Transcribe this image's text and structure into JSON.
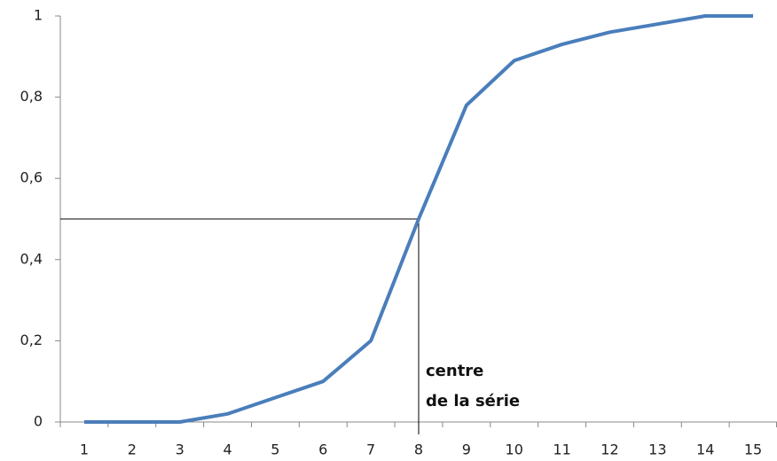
{
  "chart_data": {
    "type": "line",
    "categories": [
      "1",
      "2",
      "3",
      "4",
      "5",
      "6",
      "7",
      "8",
      "9",
      "10",
      "11",
      "12",
      "13",
      "14",
      "15"
    ],
    "series": [
      {
        "color": "#4a7ebb",
        "values": [
          0,
          0,
          0,
          0.02,
          0.06,
          0.1,
          0.2,
          0.5,
          0.78,
          0.89,
          0.93,
          0.96,
          0.98,
          1,
          1
        ]
      }
    ],
    "ylim": [
      0,
      1
    ],
    "yticks": [
      0,
      {
        "value": 0.2,
        "label": "0,2"
      },
      {
        "value": 0.4,
        "label": "0,4"
      },
      {
        "value": 0.6,
        "label": "0,6"
      },
      {
        "value": 0.8,
        "label": "0,8"
      },
      1
    ],
    "annotation": {
      "lines": [
        "centre",
        "de la série"
      ],
      "category": "8",
      "value": 0.5
    }
  }
}
